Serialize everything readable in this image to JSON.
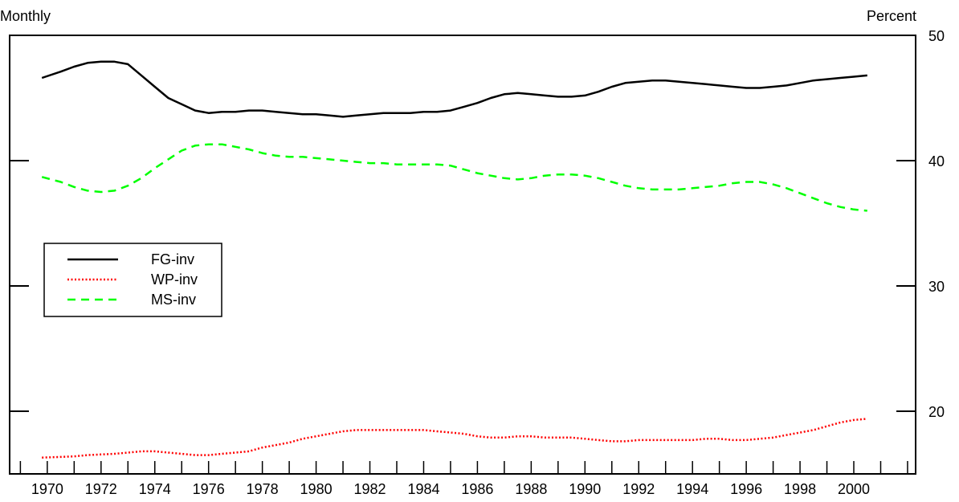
{
  "chart_data": {
    "type": "line",
    "left_label": "Monthly",
    "right_label": "Percent",
    "xlim": [
      1968.6,
      2002.3
    ],
    "ylim": [
      15,
      50
    ],
    "y_ticks": [
      20,
      30,
      40,
      50
    ],
    "y_axis_side": "right",
    "x_ticks": [
      1970,
      1972,
      1974,
      1976,
      1978,
      1980,
      1982,
      1984,
      1986,
      1988,
      1990,
      1992,
      1994,
      1996,
      1998,
      2000
    ],
    "grid": false,
    "legend_position": "middle-left",
    "series": [
      {
        "name": "FG-inv",
        "color": "#000000",
        "style": "solid",
        "x": [
          1969.8,
          1970.5,
          1971.0,
          1971.5,
          1972.0,
          1972.5,
          1973.0,
          1973.5,
          1974.0,
          1974.5,
          1975.0,
          1975.5,
          1976.0,
          1976.5,
          1977.0,
          1977.5,
          1978.0,
          1978.5,
          1979.0,
          1979.5,
          1980.0,
          1980.5,
          1981.0,
          1981.5,
          1982.0,
          1982.5,
          1983.0,
          1983.5,
          1984.0,
          1984.5,
          1985.0,
          1985.5,
          1986.0,
          1986.5,
          1987.0,
          1987.5,
          1988.0,
          1988.5,
          1989.0,
          1989.5,
          1990.0,
          1990.5,
          1991.0,
          1991.5,
          1992.0,
          1992.5,
          1993.0,
          1993.5,
          1994.0,
          1994.5,
          1995.0,
          1995.5,
          1996.0,
          1996.5,
          1997.0,
          1997.5,
          1998.0,
          1998.5,
          1999.0,
          1999.5,
          2000.0,
          2000.5
        ],
        "y": [
          46.6,
          47.1,
          47.5,
          47.8,
          47.9,
          47.9,
          47.7,
          46.8,
          45.9,
          45.0,
          44.5,
          44.0,
          43.8,
          43.9,
          43.9,
          44.0,
          44.0,
          43.9,
          43.8,
          43.7,
          43.7,
          43.6,
          43.5,
          43.6,
          43.7,
          43.8,
          43.8,
          43.8,
          43.9,
          43.9,
          44.0,
          44.3,
          44.6,
          45.0,
          45.3,
          45.4,
          45.3,
          45.2,
          45.1,
          45.1,
          45.2,
          45.5,
          45.9,
          46.2,
          46.3,
          46.4,
          46.4,
          46.3,
          46.2,
          46.1,
          46.0,
          45.9,
          45.8,
          45.8,
          45.9,
          46.0,
          46.2,
          46.4,
          46.5,
          46.6,
          46.7,
          46.8
        ]
      },
      {
        "name": "WP-inv",
        "color": "#ff0000",
        "style": "dotted",
        "x": [
          1969.8,
          1970.5,
          1971.0,
          1971.5,
          1972.0,
          1972.5,
          1973.0,
          1973.5,
          1974.0,
          1974.5,
          1975.0,
          1975.5,
          1976.0,
          1976.5,
          1977.0,
          1977.5,
          1978.0,
          1978.5,
          1979.0,
          1979.5,
          1980.0,
          1980.5,
          1981.0,
          1981.5,
          1982.0,
          1982.5,
          1983.0,
          1983.5,
          1984.0,
          1984.5,
          1985.0,
          1985.5,
          1986.0,
          1986.5,
          1987.0,
          1987.5,
          1988.0,
          1988.5,
          1989.0,
          1989.5,
          1990.0,
          1990.5,
          1991.0,
          1991.5,
          1992.0,
          1992.5,
          1993.0,
          1993.5,
          1994.0,
          1994.5,
          1995.0,
          1995.5,
          1996.0,
          1996.5,
          1997.0,
          1997.5,
          1998.0,
          1998.5,
          1999.0,
          1999.5,
          2000.0,
          2000.5
        ],
        "y": [
          16.3,
          16.35,
          16.4,
          16.5,
          16.55,
          16.6,
          16.7,
          16.8,
          16.8,
          16.7,
          16.6,
          16.5,
          16.5,
          16.6,
          16.7,
          16.8,
          17.1,
          17.3,
          17.5,
          17.8,
          18.0,
          18.2,
          18.4,
          18.5,
          18.5,
          18.5,
          18.5,
          18.5,
          18.5,
          18.4,
          18.3,
          18.2,
          18.0,
          17.9,
          17.9,
          18.0,
          18.0,
          17.9,
          17.9,
          17.9,
          17.8,
          17.7,
          17.6,
          17.6,
          17.7,
          17.7,
          17.7,
          17.7,
          17.7,
          17.8,
          17.8,
          17.7,
          17.7,
          17.8,
          17.9,
          18.1,
          18.3,
          18.5,
          18.8,
          19.1,
          19.3,
          19.4
        ]
      },
      {
        "name": "MS-inv",
        "color": "#00ff00",
        "style": "dashed",
        "x": [
          1969.8,
          1970.5,
          1971.0,
          1971.5,
          1972.0,
          1972.5,
          1973.0,
          1973.5,
          1974.0,
          1974.5,
          1975.0,
          1975.5,
          1976.0,
          1976.5,
          1977.0,
          1977.5,
          1978.0,
          1978.5,
          1979.0,
          1979.5,
          1980.0,
          1980.5,
          1981.0,
          1981.5,
          1982.0,
          1982.5,
          1983.0,
          1983.5,
          1984.0,
          1984.5,
          1985.0,
          1985.5,
          1986.0,
          1986.5,
          1987.0,
          1987.5,
          1988.0,
          1988.5,
          1989.0,
          1989.5,
          1990.0,
          1990.5,
          1991.0,
          1991.5,
          1992.0,
          1992.5,
          1993.0,
          1993.5,
          1994.0,
          1994.5,
          1995.0,
          1995.5,
          1996.0,
          1996.5,
          1997.0,
          1997.5,
          1998.0,
          1998.5,
          1999.0,
          1999.5,
          2000.0,
          2000.5
        ],
        "y": [
          38.7,
          38.3,
          37.9,
          37.6,
          37.5,
          37.6,
          38.0,
          38.6,
          39.4,
          40.1,
          40.8,
          41.2,
          41.3,
          41.3,
          41.1,
          40.9,
          40.6,
          40.4,
          40.3,
          40.3,
          40.2,
          40.1,
          40.0,
          39.9,
          39.8,
          39.8,
          39.7,
          39.7,
          39.7,
          39.7,
          39.6,
          39.3,
          39.0,
          38.8,
          38.6,
          38.5,
          38.6,
          38.8,
          38.9,
          38.9,
          38.8,
          38.6,
          38.3,
          38.0,
          37.8,
          37.7,
          37.7,
          37.7,
          37.8,
          37.9,
          38.0,
          38.2,
          38.3,
          38.3,
          38.1,
          37.8,
          37.4,
          37.0,
          36.6,
          36.3,
          36.1,
          36.0
        ]
      }
    ]
  }
}
